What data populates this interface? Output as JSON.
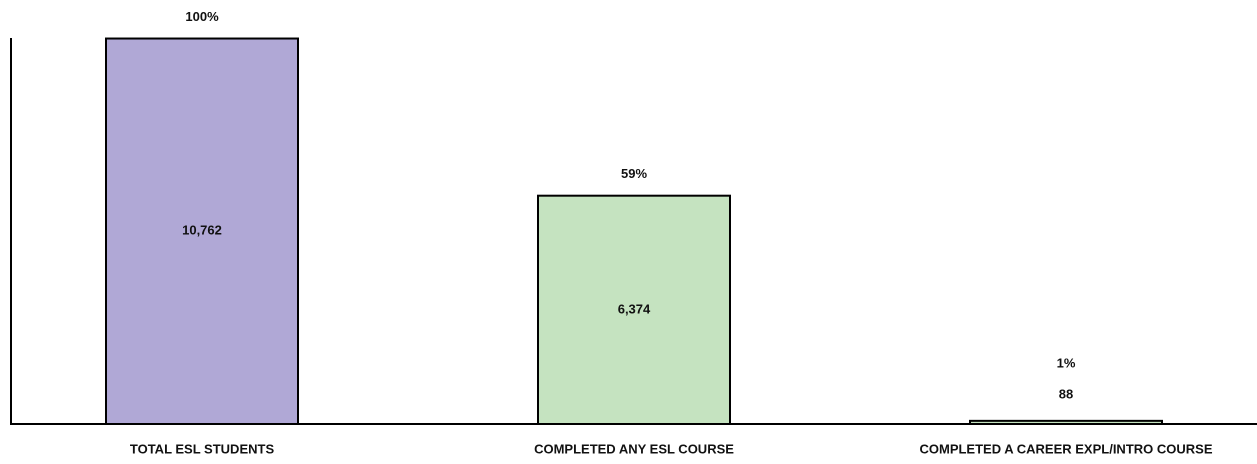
{
  "chart_data": {
    "type": "bar",
    "categories": [
      "TOTAL ESL STUDENTS",
      "COMPLETED ANY ESL COURSE",
      "COMPLETED A CAREER EXPL/INTRO COURSE"
    ],
    "values": [
      10762,
      6374,
      88
    ],
    "value_labels": [
      "10,762",
      "6,374",
      "88"
    ],
    "shares": [
      100,
      59,
      1
    ],
    "share_labels": [
      "100%",
      "59%",
      "1%"
    ],
    "colors": [
      "#b0a8d6",
      "#c5e3c0",
      "#c5e3c0"
    ],
    "ylim": [
      0,
      11000
    ]
  }
}
